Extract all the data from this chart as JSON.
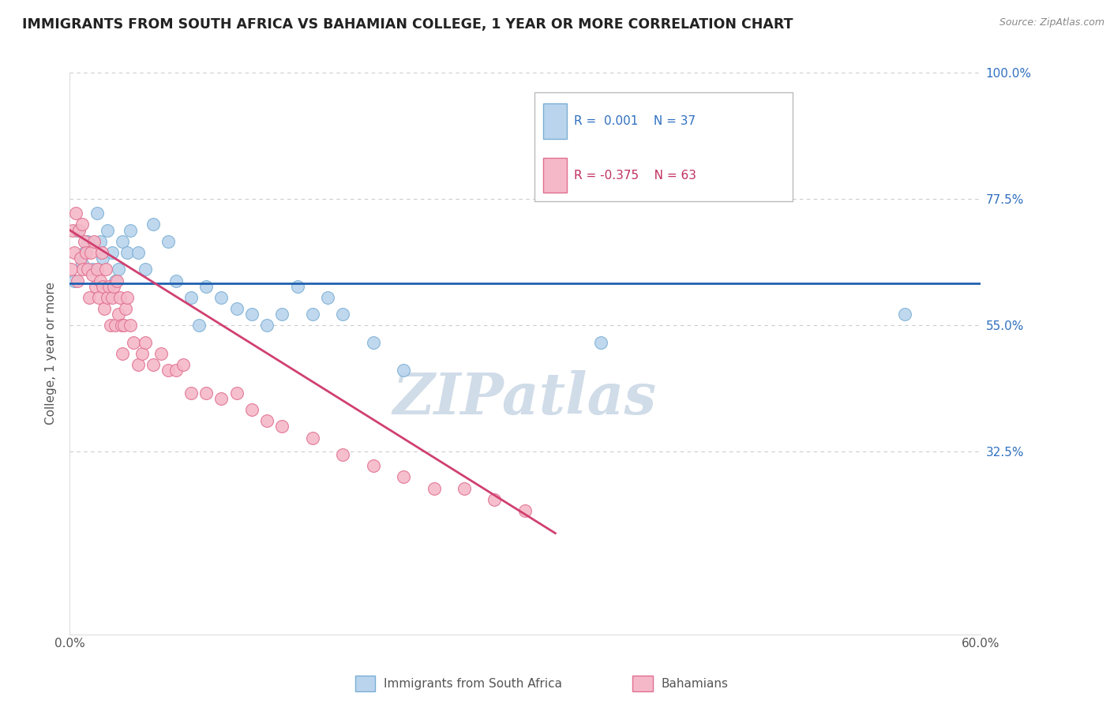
{
  "title": "IMMIGRANTS FROM SOUTH AFRICA VS BAHAMIAN COLLEGE, 1 YEAR OR MORE CORRELATION CHART",
  "source_text": "Source: ZipAtlas.com",
  "ylabel_label": "College, 1 year or more",
  "legend_blue_label": "Immigrants from South Africa",
  "legend_pink_label": "Bahamians",
  "blue_R": "0.001",
  "blue_N": "37",
  "pink_R": "-0.375",
  "pink_N": "63",
  "blue_color": "#bad4ed",
  "blue_edge": "#7bafd4",
  "pink_color": "#f5b8c8",
  "pink_edge": "#e07090",
  "trend_blue_color": "#2060b0",
  "trend_pink_color": "#d04070",
  "watermark_color": "#d0dce8",
  "title_color": "#222222",
  "axis_color": "#555555",
  "grid_color": "#cccccc",
  "right_tick_color": "#3070c0",
  "source_color": "#888888",
  "blue_x": [
    0.3,
    0.5,
    0.8,
    1.0,
    1.2,
    1.5,
    1.8,
    2.0,
    2.2,
    2.5,
    2.8,
    3.0,
    3.2,
    3.5,
    3.8,
    4.0,
    4.5,
    5.0,
    5.5,
    6.5,
    7.0,
    8.0,
    8.5,
    9.0,
    10.0,
    11.0,
    12.0,
    13.0,
    14.0,
    15.0,
    16.0,
    17.0,
    18.0,
    20.0,
    22.0,
    35.0,
    55.0
  ],
  "blue_y": [
    63,
    72,
    66,
    68,
    70,
    65,
    75,
    70,
    67,
    72,
    68,
    63,
    65,
    70,
    68,
    72,
    68,
    65,
    73,
    70,
    63,
    60,
    55,
    62,
    60,
    58,
    57,
    55,
    57,
    62,
    57,
    60,
    57,
    52,
    47,
    52,
    57
  ],
  "pink_x": [
    0.1,
    0.2,
    0.3,
    0.4,
    0.5,
    0.6,
    0.7,
    0.8,
    0.9,
    1.0,
    1.1,
    1.2,
    1.3,
    1.4,
    1.5,
    1.6,
    1.7,
    1.8,
    1.9,
    2.0,
    2.1,
    2.2,
    2.3,
    2.4,
    2.5,
    2.6,
    2.7,
    2.8,
    2.9,
    3.0,
    3.1,
    3.2,
    3.3,
    3.4,
    3.5,
    3.6,
    3.7,
    3.8,
    4.0,
    4.2,
    4.5,
    4.8,
    5.0,
    5.5,
    6.0,
    6.5,
    7.0,
    7.5,
    8.0,
    9.0,
    10.0,
    11.0,
    12.0,
    13.0,
    14.0,
    16.0,
    18.0,
    20.0,
    22.0,
    24.0,
    26.0,
    28.0,
    30.0
  ],
  "pink_y": [
    65,
    72,
    68,
    75,
    63,
    72,
    67,
    73,
    65,
    70,
    68,
    65,
    60,
    68,
    64,
    70,
    62,
    65,
    60,
    63,
    68,
    62,
    58,
    65,
    60,
    62,
    55,
    60,
    62,
    55,
    63,
    57,
    60,
    55,
    50,
    55,
    58,
    60,
    55,
    52,
    48,
    50,
    52,
    48,
    50,
    47,
    47,
    48,
    43,
    43,
    42,
    43,
    40,
    38,
    37,
    35,
    32,
    30,
    28,
    26,
    26,
    24,
    22
  ],
  "xmin": 0.0,
  "xmax": 60.0,
  "ymin": 0.0,
  "ymax": 100.0,
  "blue_trend_x": [
    0.0,
    60.0
  ],
  "blue_trend_y": [
    62.5,
    62.5
  ],
  "pink_trend_x": [
    0.0,
    32.0
  ],
  "pink_trend_y": [
    72.0,
    18.0
  ]
}
